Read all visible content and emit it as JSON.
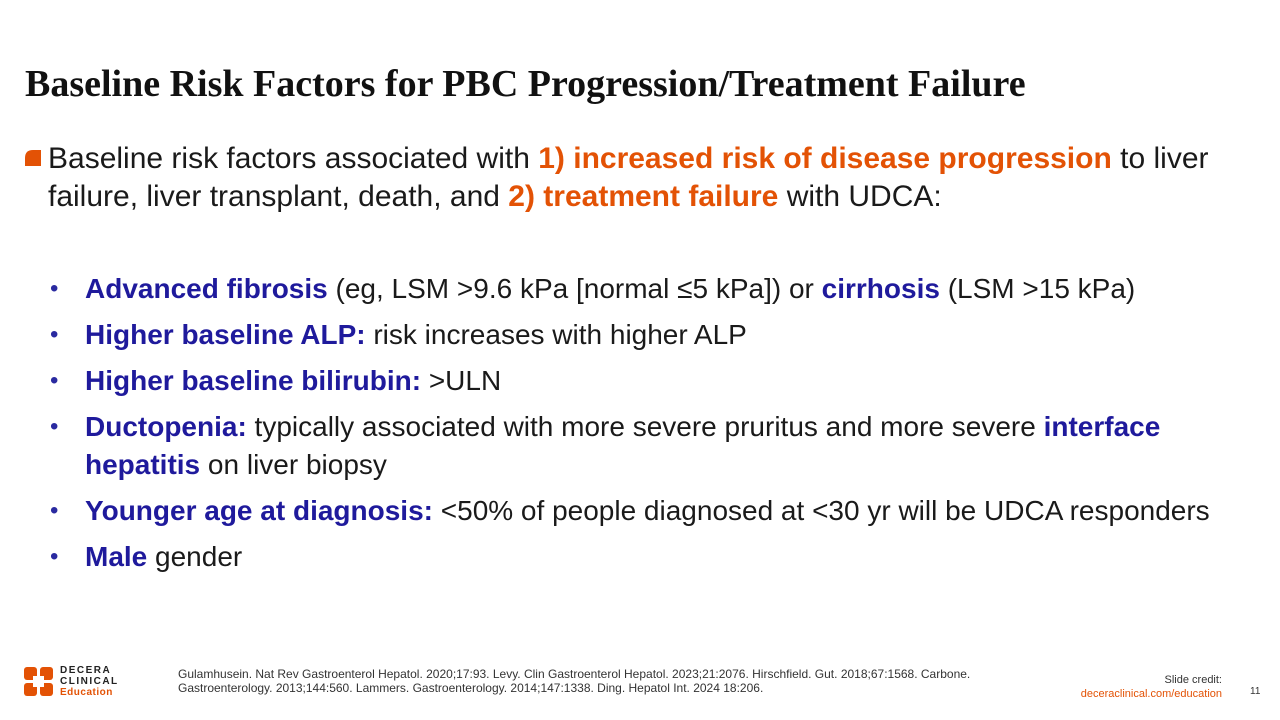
{
  "slide": {
    "title": "Baseline Risk Factors for PBC Progression/Treatment Failure",
    "main": {
      "p1": "Baseline risk factors associated with ",
      "p2": "1) increased risk of disease progression",
      "p3": " to liver failure, liver transplant, death, and ",
      "p4": "2) treatment failure",
      "p5": " with UDCA:"
    },
    "bullets": [
      {
        "bold": "Advanced fibrosis",
        "mid": " (eg, LSM >9.6 kPa [normal ≤5 kPa]) or ",
        "bold2": "cirrhosis",
        "rest": " (LSM >15 kPa)"
      },
      {
        "bold": "Higher baseline ALP:",
        "rest": " risk increases with higher ALP"
      },
      {
        "bold": "Higher baseline bilirubin:",
        "rest": " >ULN"
      },
      {
        "bold": "Ductopenia:",
        "mid": " typically associated with more severe pruritus and more severe ",
        "bold2": "interface hepatitis",
        "rest": " on liver biopsy"
      },
      {
        "bold": "Younger age at diagnosis:",
        "rest": " <50% of people diagnosed at <30 yr will be UDCA responders"
      },
      {
        "bold": "Male",
        "rest": " gender"
      }
    ],
    "bullet_symbol": "•"
  },
  "footer": {
    "logo": {
      "line1": "DECERA",
      "line2": "CLINICAL",
      "line3": "Education"
    },
    "references": "Gulamhusein. Nat Rev Gastroenterol Hepatol. 2020;17:93. Levy. Clin Gastroenterol Hepatol. 2023;21:2076. Hirschfield. Gut. 2018;67:1568. Carbone. Gastroenterology. 2013;144:560. Lammers. Gastroenterology. 2014;147:1338. Ding. Hepatol Int. 2024 18:206.",
    "credit_label": "Slide credit:",
    "credit_url": "deceraclinical.com/education",
    "page_number": "11"
  },
  "colors": {
    "accent_orange": "#e35205",
    "accent_navy": "#1f1a9c"
  }
}
